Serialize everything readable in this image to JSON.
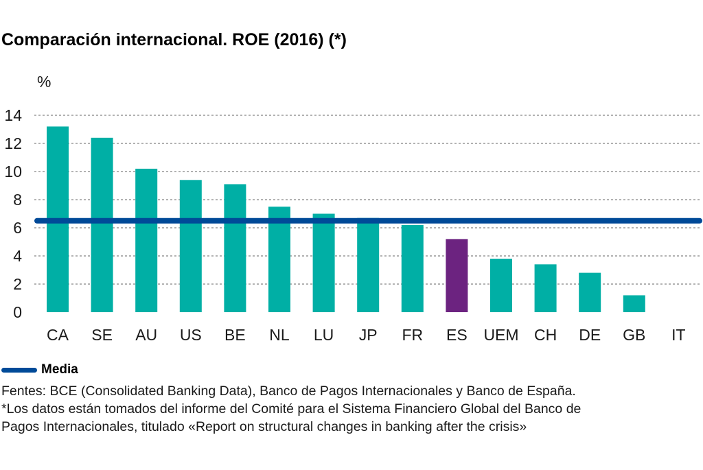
{
  "colors": {
    "bar": "#00afa5",
    "highlight": "#6c2380",
    "mean_line": "#004a98",
    "grid": "#666666"
  },
  "legend": {
    "label": "Media"
  },
  "notes": {
    "sources": "Fentes: BCE (Consolidated Banking Data), Banco de Pagos Internacionales y Banco de España.",
    "footnote_line1": "*Los datos están tomados del informe del Comité para el Sistema Financiero Global del Banco de",
    "footnote_line2": "Pagos Internacionales, titulado «Report on structural changes in banking after the crisis»"
  },
  "chart_data": {
    "type": "bar",
    "title": "Comparación internacional. ROE (2016) (*)",
    "ylabel": "%",
    "xlabel": "",
    "ylim": [
      0,
      14
    ],
    "yticks": [
      0,
      2,
      4,
      6,
      8,
      10,
      12,
      14
    ],
    "grid": true,
    "categories": [
      "CA",
      "SE",
      "AU",
      "US",
      "BE",
      "NL",
      "LU",
      "JP",
      "FR",
      "ES",
      "UEM",
      "CH",
      "DE",
      "GB",
      "IT"
    ],
    "values": [
      13.2,
      12.4,
      10.2,
      9.4,
      9.1,
      7.5,
      7.0,
      6.7,
      6.2,
      5.2,
      3.8,
      3.4,
      2.8,
      1.2,
      0
    ],
    "highlight_category": "ES",
    "reference_line": {
      "name": "Media",
      "value": 6.5
    }
  }
}
